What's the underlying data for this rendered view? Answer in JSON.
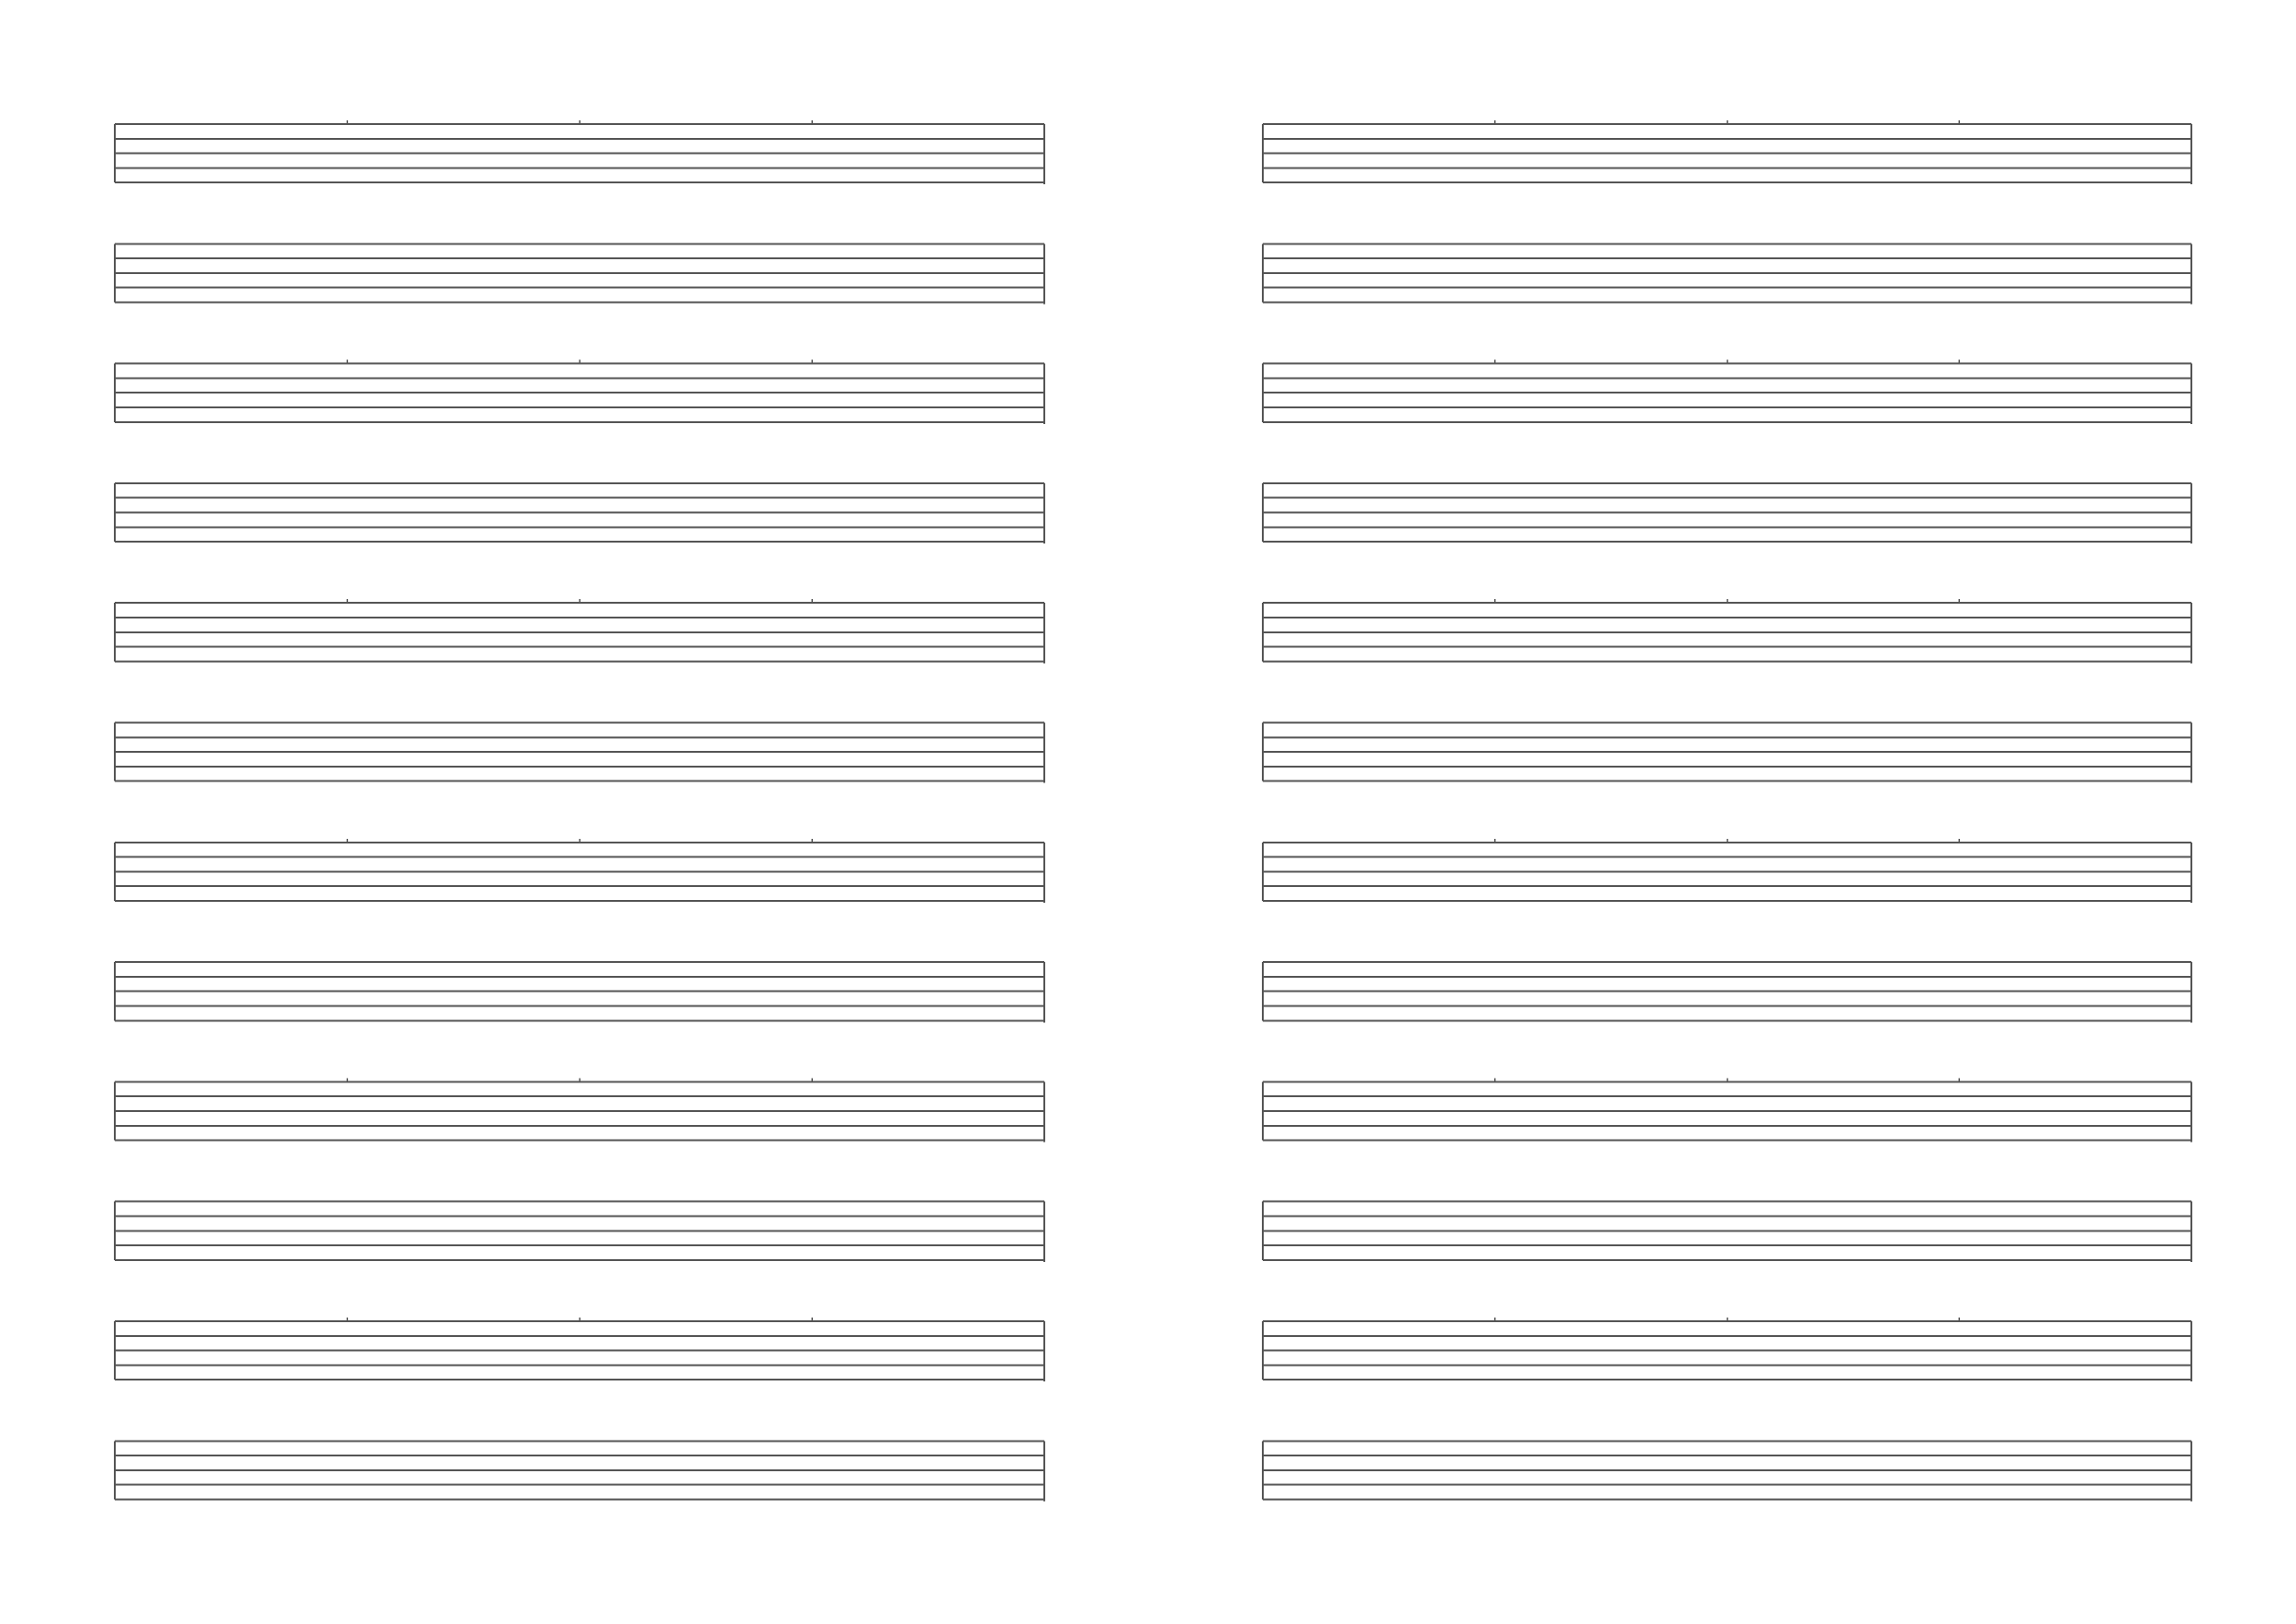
{
  "document": {
    "type": "blank-staff-paper",
    "columns": 2,
    "staves_per_column": 12,
    "lines_per_staff": 5,
    "line_color": "#555555",
    "background_color": "#ffffff"
  }
}
